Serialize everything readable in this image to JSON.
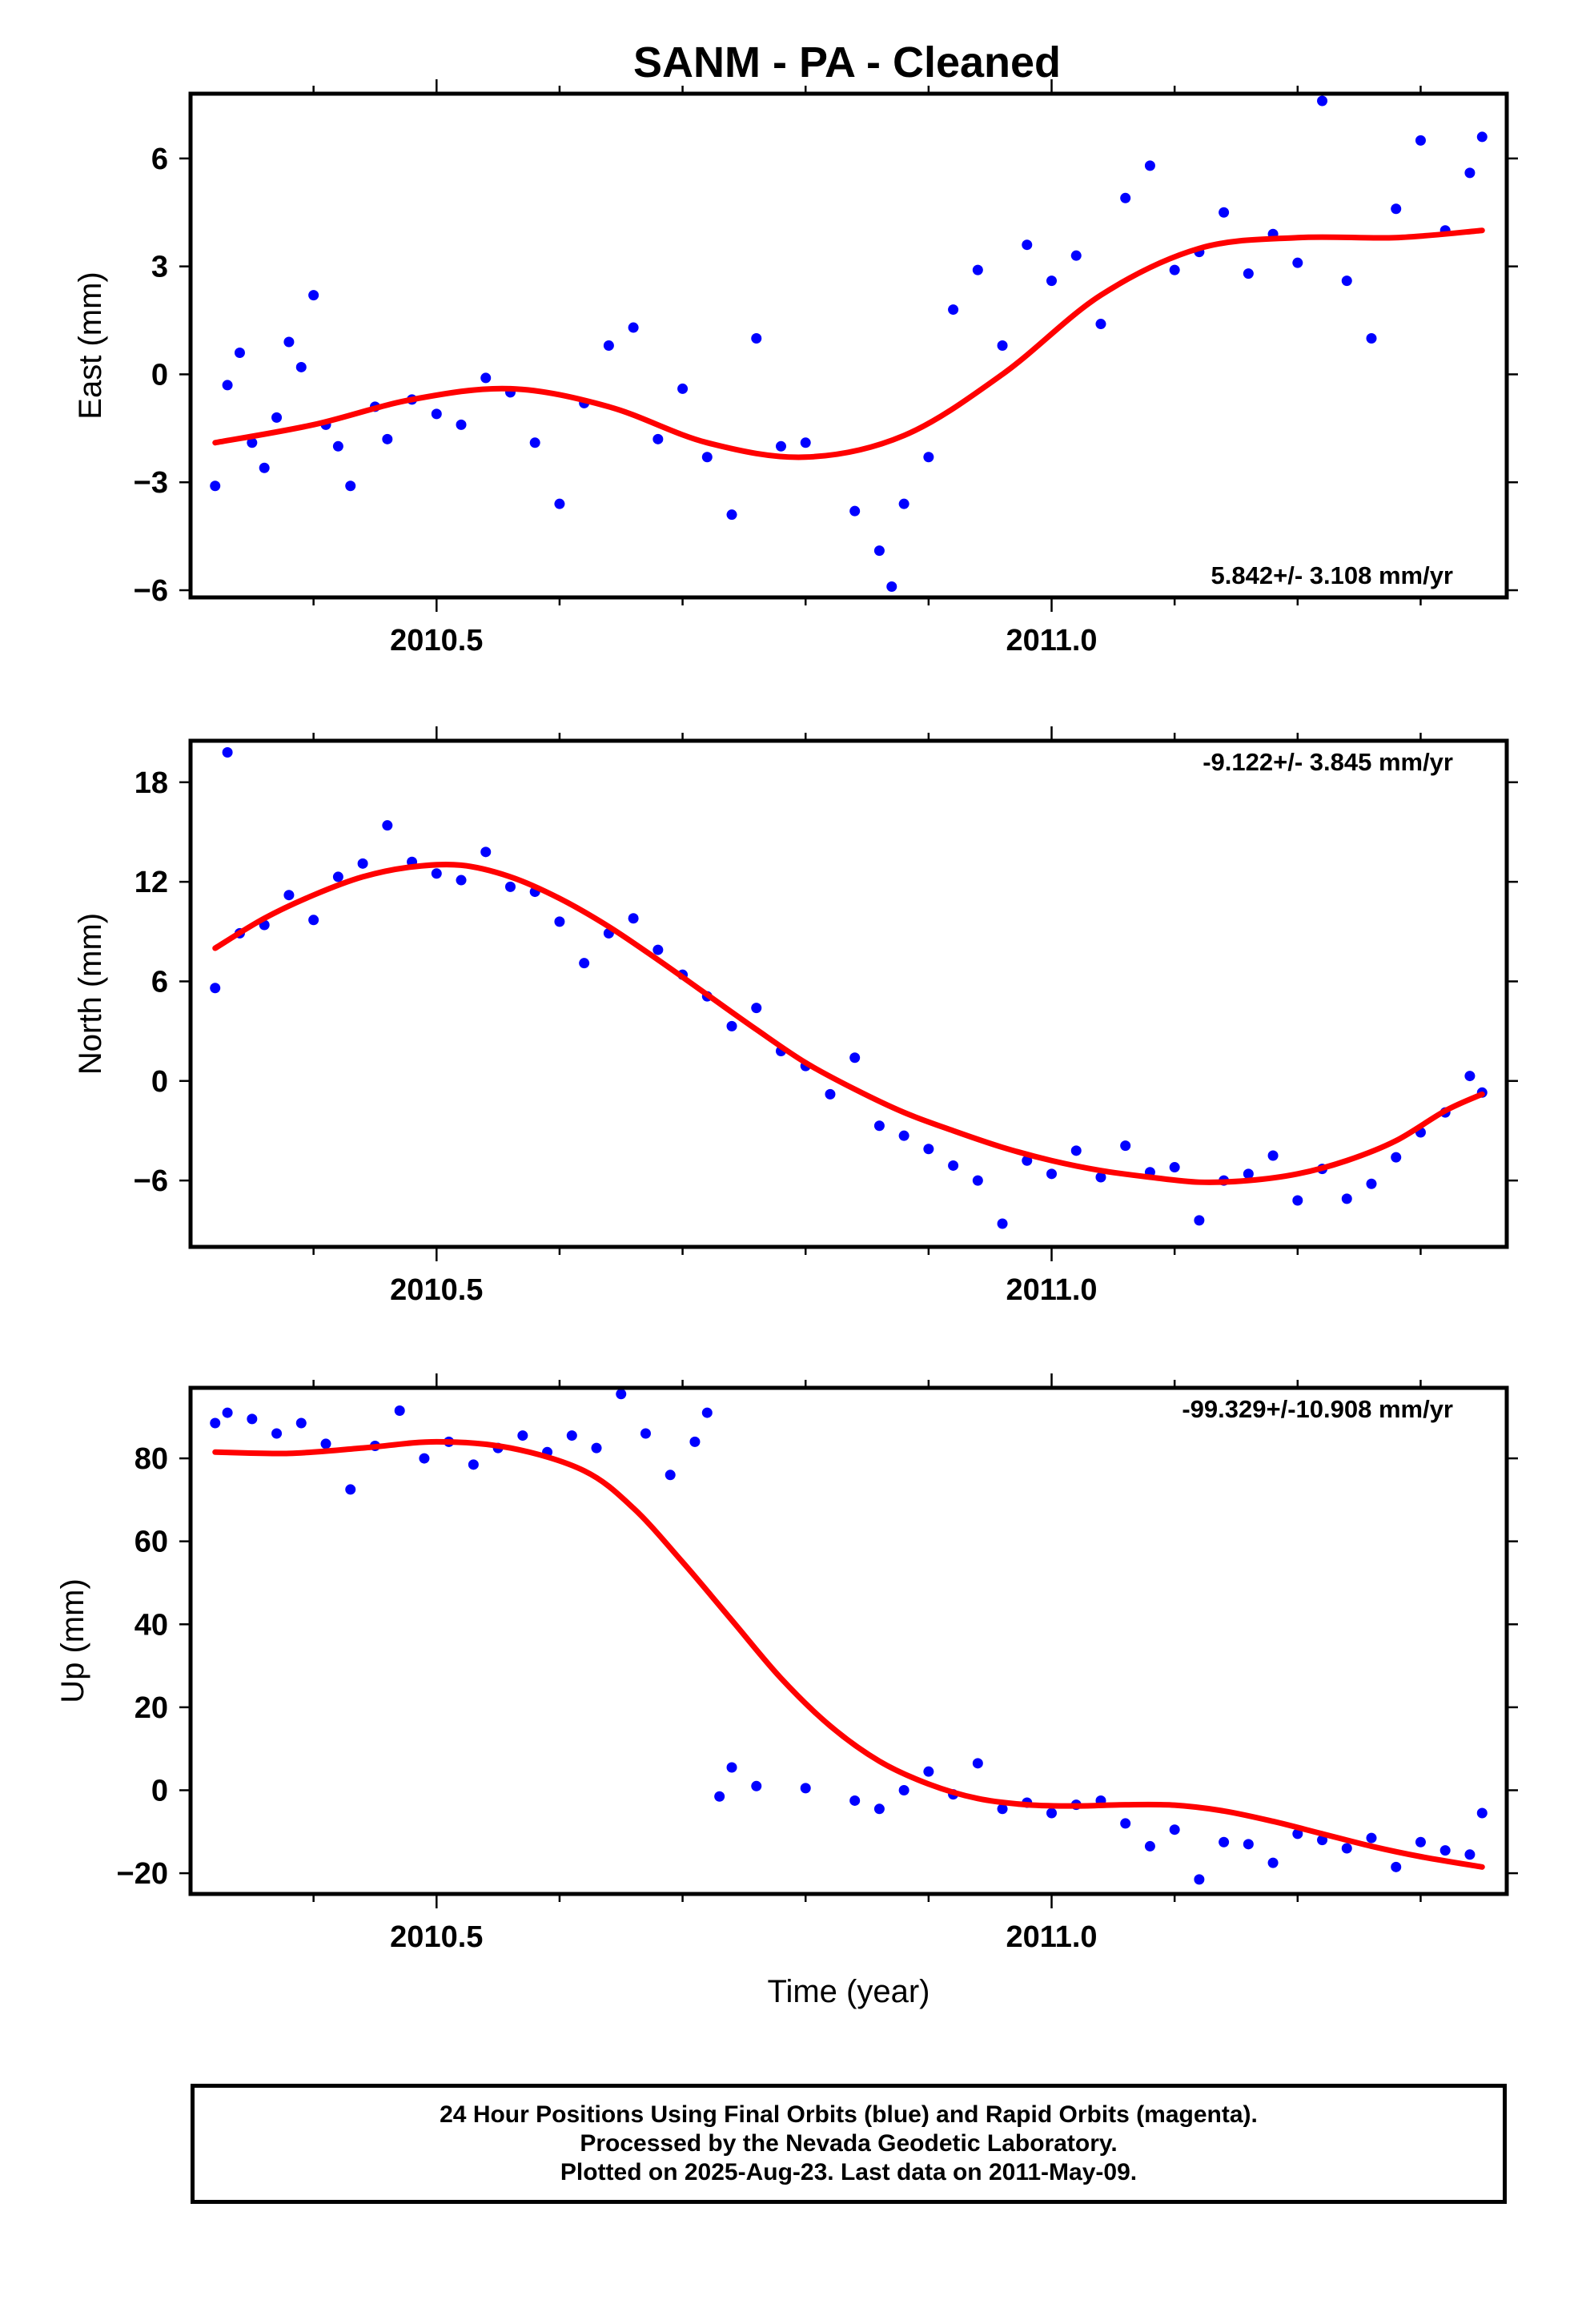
{
  "chart_data": [
    {
      "type": "scatter",
      "title": "SANM  - PA - Cleaned",
      "ylabel": "East (mm)",
      "xlim": [
        2010.3,
        2011.37
      ],
      "ylim": [
        -6.2,
        7.8
      ],
      "yticks": [
        -6,
        -3,
        0,
        3,
        6
      ],
      "xticks": [
        2010.5,
        2011.0
      ],
      "xtick_labels": [
        "2010.5",
        "2011.0"
      ],
      "rate_label": "5.842+/- 3.108 mm/yr",
      "fit_curve": {
        "color": "#ff0000",
        "x": [
          2010.32,
          2010.4,
          2010.48,
          2010.56,
          2010.64,
          2010.72,
          2010.8,
          2010.88,
          2010.96,
          2011.04,
          2011.12,
          2011.2,
          2011.28,
          2011.35
        ],
        "y": [
          -1.9,
          -1.4,
          -0.7,
          -0.4,
          -0.9,
          -1.9,
          -2.3,
          -1.7,
          0.0,
          2.2,
          3.5,
          3.8,
          3.8,
          4.0
        ]
      },
      "series": [
        {
          "color": "#0000ff",
          "x": [
            2010.32,
            2010.33,
            2010.34,
            2010.35,
            2010.36,
            2010.37,
            2010.38,
            2010.39,
            2010.4,
            2010.41,
            2010.42,
            2010.43,
            2010.45,
            2010.46,
            2010.48,
            2010.5,
            2010.52,
            2010.54,
            2010.56,
            2010.58,
            2010.6,
            2010.62,
            2010.64,
            2010.66,
            2010.68,
            2010.7,
            2010.72,
            2010.74,
            2010.76,
            2010.78,
            2010.8,
            2010.84,
            2010.86,
            2010.87,
            2010.88,
            2010.9,
            2010.92,
            2010.94,
            2010.96,
            2010.98,
            2011.0,
            2011.02,
            2011.04,
            2011.06,
            2011.08,
            2011.1,
            2011.12,
            2011.14,
            2011.16,
            2011.18,
            2011.2,
            2011.22,
            2011.24,
            2011.26,
            2011.28,
            2011.3,
            2011.32,
            2011.34,
            2011.35
          ],
          "y": [
            -3.1,
            -0.3,
            0.6,
            -1.9,
            -2.6,
            -1.2,
            0.9,
            0.2,
            2.2,
            -1.4,
            -2.0,
            -3.1,
            -0.9,
            -1.8,
            -0.7,
            -1.1,
            -1.4,
            -0.1,
            -0.5,
            -1.9,
            -3.6,
            -0.8,
            0.8,
            1.3,
            -1.8,
            -0.4,
            -2.3,
            -3.9,
            1.0,
            -2.0,
            -1.9,
            -3.8,
            -4.9,
            -5.9,
            -3.6,
            -2.3,
            1.8,
            2.9,
            0.8,
            3.6,
            2.6,
            3.3,
            1.4,
            4.9,
            5.8,
            2.9,
            3.4,
            4.5,
            2.8,
            3.9,
            3.1,
            7.6,
            2.6,
            1.0,
            4.6,
            6.5,
            4.0,
            5.6,
            6.6
          ]
        }
      ]
    },
    {
      "type": "scatter",
      "ylabel": "North (mm)",
      "xlim": [
        2010.3,
        2011.37
      ],
      "ylim": [
        -10,
        20.5
      ],
      "yticks": [
        -6,
        0,
        6,
        12,
        18
      ],
      "xticks": [
        2010.5,
        2011.0
      ],
      "xtick_labels": [
        "2010.5",
        "2011.0"
      ],
      "rate_label": "-9.122+/- 3.845 mm/yr",
      "fit_curve": {
        "color": "#ff0000",
        "x": [
          2010.32,
          2010.36,
          2010.4,
          2010.44,
          2010.48,
          2010.52,
          2010.56,
          2010.6,
          2010.64,
          2010.68,
          2010.72,
          2010.76,
          2010.8,
          2010.84,
          2010.88,
          2010.92,
          2010.96,
          2011.0,
          2011.04,
          2011.08,
          2011.12,
          2011.16,
          2011.2,
          2011.24,
          2011.28,
          2011.32,
          2011.35
        ],
        "y": [
          8.0,
          9.8,
          11.2,
          12.3,
          12.9,
          13.0,
          12.3,
          11.0,
          9.3,
          7.3,
          5.2,
          3.1,
          1.1,
          -0.5,
          -1.9,
          -3.0,
          -4.0,
          -4.8,
          -5.4,
          -5.8,
          -6.1,
          -6.0,
          -5.6,
          -4.8,
          -3.6,
          -1.8,
          -0.8
        ]
      },
      "series": [
        {
          "color": "#0000ff",
          "x": [
            2010.32,
            2010.33,
            2010.34,
            2010.36,
            2010.38,
            2010.4,
            2010.42,
            2010.44,
            2010.46,
            2010.48,
            2010.5,
            2010.52,
            2010.54,
            2010.56,
            2010.58,
            2010.6,
            2010.62,
            2010.64,
            2010.66,
            2010.68,
            2010.7,
            2010.72,
            2010.74,
            2010.76,
            2010.78,
            2010.8,
            2010.82,
            2010.84,
            2010.86,
            2010.88,
            2010.9,
            2010.92,
            2010.94,
            2010.96,
            2010.98,
            2011.0,
            2011.02,
            2011.04,
            2011.06,
            2011.08,
            2011.1,
            2011.12,
            2011.14,
            2011.16,
            2011.18,
            2011.2,
            2011.22,
            2011.24,
            2011.26,
            2011.28,
            2011.3,
            2011.32,
            2011.34,
            2011.35
          ],
          "y": [
            5.6,
            19.8,
            8.9,
            9.4,
            11.2,
            9.7,
            12.3,
            13.1,
            15.4,
            13.2,
            12.5,
            12.1,
            13.8,
            11.7,
            11.4,
            9.6,
            7.1,
            8.9,
            9.8,
            7.9,
            6.4,
            5.1,
            3.3,
            4.4,
            1.8,
            0.9,
            -0.8,
            1.4,
            -2.7,
            -3.3,
            -4.1,
            -5.1,
            -6.0,
            -8.6,
            -4.8,
            -5.6,
            -4.2,
            -5.8,
            -3.9,
            -5.5,
            -5.2,
            -8.4,
            -6.0,
            -5.6,
            -4.5,
            -7.2,
            -5.3,
            -7.1,
            -6.2,
            -4.6,
            -3.1,
            -1.9,
            0.3,
            -0.7
          ]
        }
      ]
    },
    {
      "type": "scatter",
      "ylabel": "Up (mm)",
      "xlabel": "Time (year)",
      "xlim": [
        2010.3,
        2011.37
      ],
      "ylim": [
        -25,
        97
      ],
      "yticks": [
        -20,
        0,
        20,
        40,
        60,
        80
      ],
      "ytick_labels": [
        "−20",
        "0",
        "20",
        "40",
        "60",
        "80"
      ],
      "xticks": [
        2010.5,
        2011.0
      ],
      "xtick_labels": [
        "2010.5",
        "2011.0"
      ],
      "rate_label": "-99.329+/-10.908 mm/yr",
      "fit_curve": {
        "color": "#ff0000",
        "x": [
          2010.32,
          2010.38,
          2010.44,
          2010.5,
          2010.56,
          2010.62,
          2010.66,
          2010.7,
          2010.74,
          2010.78,
          2010.82,
          2010.86,
          2010.9,
          2010.94,
          2010.98,
          2011.02,
          2011.06,
          2011.1,
          2011.14,
          2011.18,
          2011.22,
          2011.26,
          2011.3,
          2011.35
        ],
        "y": [
          81.5,
          81.2,
          82.5,
          84.0,
          82.5,
          77.0,
          68.0,
          55.0,
          41.0,
          27.0,
          15.5,
          7.0,
          1.5,
          -2.0,
          -3.5,
          -3.8,
          -3.5,
          -3.6,
          -5.0,
          -7.5,
          -10.5,
          -13.5,
          -16.0,
          -18.5
        ]
      },
      "series": [
        {
          "color": "#0000ff",
          "x": [
            2010.32,
            2010.33,
            2010.35,
            2010.37,
            2010.39,
            2010.41,
            2010.43,
            2010.45,
            2010.47,
            2010.49,
            2010.51,
            2010.53,
            2010.55,
            2010.57,
            2010.59,
            2010.61,
            2010.63,
            2010.65,
            2010.67,
            2010.69,
            2010.71,
            2010.72,
            2010.73,
            2010.74,
            2010.76,
            2010.8,
            2010.84,
            2010.86,
            2010.88,
            2010.9,
            2010.92,
            2010.94,
            2010.96,
            2010.98,
            2011.0,
            2011.02,
            2011.04,
            2011.06,
            2011.08,
            2011.1,
            2011.12,
            2011.14,
            2011.16,
            2011.18,
            2011.2,
            2011.22,
            2011.24,
            2011.26,
            2011.28,
            2011.3,
            2011.32,
            2011.34,
            2011.35
          ],
          "y": [
            88.5,
            91.0,
            89.5,
            86.0,
            88.5,
            83.5,
            72.5,
            83.0,
            91.5,
            80.0,
            84.0,
            78.5,
            82.5,
            85.5,
            81.5,
            85.5,
            82.5,
            95.5,
            86.0,
            76.0,
            84.0,
            91.0,
            -1.5,
            5.5,
            1.0,
            0.5,
            -2.5,
            -4.5,
            0.0,
            4.5,
            -1.0,
            6.5,
            -4.5,
            -3.0,
            -5.5,
            -3.5,
            -2.5,
            -8.0,
            -13.5,
            -9.5,
            -21.5,
            -12.5,
            -13.0,
            -17.5,
            -10.5,
            -12.0,
            -14.0,
            -11.5,
            -18.5,
            -12.5,
            -14.5,
            -15.5,
            -5.5
          ]
        }
      ]
    }
  ],
  "footer": {
    "line1": "24 Hour Positions Using Final Orbits (blue) and Rapid Orbits (magenta).",
    "line2": "Processed by the Nevada Geodetic Laboratory.",
    "line3": "Plotted on 2025-Aug-23. Last data on 2011-May-09."
  }
}
